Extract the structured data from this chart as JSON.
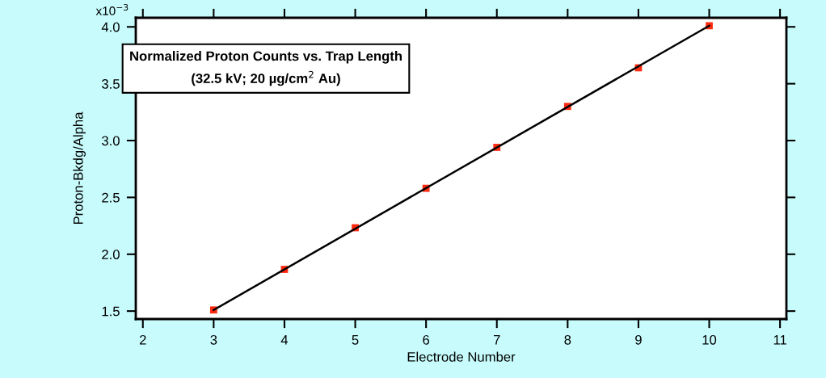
{
  "chart_data": {
    "type": "scatter",
    "title": "Normalized Proton Counts vs. Trap Length",
    "subtitle": "(32.5 kV; 20 µg/cm$^{2}$ Au)",
    "xlabel": "Electrode Number",
    "ylabel": "Proton-Bkdg/Alpha",
    "series": [
      {
        "type": "scatter",
        "color": "#ff2a10",
        "marker": "square",
        "x": [
          3,
          4,
          5,
          6,
          7,
          8,
          9,
          10
        ],
        "values": [
          1.51,
          1.867,
          2.233,
          2.58,
          2.94,
          3.3,
          3.64,
          4.01
        ]
      },
      {
        "type": "line",
        "color": "#000000",
        "line_style": "solid",
        "x": [
          3,
          10
        ],
        "values": [
          1.51,
          4.01
        ]
      }
    ],
    "xlim": [
      1.9,
      11.09
    ],
    "ylim": [
      1.43,
      4.08
    ],
    "xticks": [
      2,
      3,
      4,
      5,
      6,
      7,
      8,
      9,
      10,
      11
    ],
    "yticks": [
      {
        "value": 1.5,
        "label": "1.5"
      },
      {
        "value": 2.0,
        "label": "2.0"
      },
      {
        "value": 2.5,
        "label": "2.5"
      },
      {
        "value": 3.0,
        "label": "3.0"
      },
      {
        "value": 3.5,
        "label": "3.5"
      },
      {
        "value": 4.0,
        "label": "4.0"
      }
    ],
    "annotations": [
      "x10$^{−3}$"
    ],
    "grid": false,
    "legend": false
  }
}
